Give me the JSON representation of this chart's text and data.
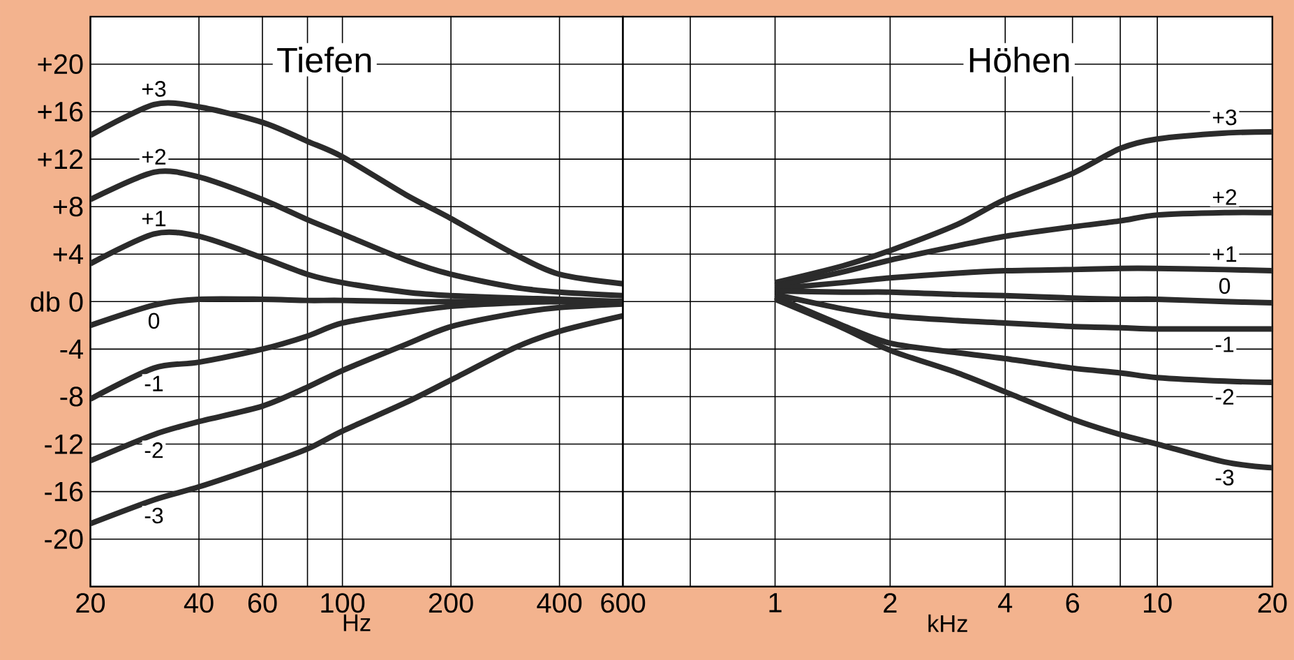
{
  "chart_data": [
    {
      "type": "line",
      "title": "Tiefen",
      "xlabel": "Hz",
      "log": "x",
      "grid": true,
      "x": [
        20,
        30,
        40,
        60,
        80,
        100,
        150,
        200,
        300,
        400,
        600
      ],
      "xlim": [
        20,
        600
      ],
      "xticks": [
        20,
        40,
        60,
        {
          "value": 80,
          "label": null
        },
        100,
        200,
        400,
        600
      ],
      "ylim": [
        -24,
        24
      ],
      "yticks": [
        {
          "value": 20,
          "label": "+20"
        },
        {
          "value": 16,
          "label": "+16"
        },
        {
          "value": 12,
          "label": "+12"
        },
        {
          "value": 8,
          "label": "+8"
        },
        {
          "value": 4,
          "label": "+4"
        },
        {
          "value": 0,
          "label": "db 0"
        },
        -4,
        -8,
        -12,
        -16,
        -20
      ],
      "series": [
        {
          "name": "+3",
          "color": "#2b2b2b",
          "values": [
            14.0,
            16.6,
            16.4,
            15.1,
            13.5,
            12.2,
            9.0,
            7.0,
            4.0,
            2.3,
            1.5
          ]
        },
        {
          "name": "+2",
          "color": "#2b2b2b",
          "values": [
            8.6,
            10.9,
            10.5,
            8.6,
            6.9,
            5.7,
            3.5,
            2.3,
            1.2,
            0.8,
            0.5
          ]
        },
        {
          "name": "+1",
          "color": "#2b2b2b",
          "values": [
            3.2,
            5.7,
            5.5,
            3.7,
            2.3,
            1.6,
            0.8,
            0.5,
            0.3,
            0.2,
            0
          ]
        },
        {
          "name": "0",
          "color": "#2b2b2b",
          "values": [
            -2,
            -0.3,
            0.2,
            0.2,
            0.1,
            0.1,
            0,
            0,
            0,
            0,
            0
          ]
        },
        {
          "name": "-1",
          "color": "#2b2b2b",
          "values": [
            -8.2,
            -5.6,
            -5.1,
            -4,
            -2.9,
            -1.8,
            -0.9,
            -0.4,
            -0.1,
            0,
            0
          ]
        },
        {
          "name": "-2",
          "color": "#2b2b2b",
          "values": [
            -13.4,
            -11.2,
            -10.1,
            -8.8,
            -7.2,
            -5.8,
            -3.6,
            -2.1,
            -1,
            -0.5,
            -0.2
          ]
        },
        {
          "name": "-3",
          "color": "#2b2b2b",
          "values": [
            -18.7,
            -16.7,
            -15.6,
            -13.8,
            -12.4,
            -10.9,
            -8.5,
            -6.6,
            -3.9,
            -2.5,
            -1.2
          ]
        }
      ]
    },
    {
      "type": "line",
      "title": "Höhen",
      "xlabel": "kHz",
      "log": "x",
      "grid": true,
      "tick_labels": "x",
      "x": [
        1,
        1.5,
        2,
        3,
        4,
        6,
        8,
        10,
        15,
        20
      ],
      "xlim": [
        0.4,
        20
      ],
      "xticks": [
        {
          "value": 0.6,
          "label": null
        },
        1,
        2,
        4,
        6,
        {
          "value": 8,
          "label": null
        },
        10,
        20
      ],
      "ylim": [
        -24,
        24
      ],
      "yticks": [
        20,
        16,
        12,
        8,
        4,
        0,
        -4,
        -8,
        -12,
        -16,
        -20
      ],
      "series": [
        {
          "name": "+3",
          "color": "#2b2b2b",
          "values": [
            1.6,
            3,
            4.3,
            6.5,
            8.6,
            10.8,
            12.9,
            13.7,
            14.2,
            14.3
          ]
        },
        {
          "name": "+2",
          "color": "#2b2b2b",
          "values": [
            1.3,
            2.5,
            3.5,
            4.7,
            5.5,
            6.3,
            6.8,
            7.3,
            7.5,
            7.5
          ]
        },
        {
          "name": "+1",
          "color": "#2b2b2b",
          "values": [
            1.1,
            1.6,
            2.0,
            2.4,
            2.6,
            2.7,
            2.8,
            2.8,
            2.7,
            2.6
          ]
        },
        {
          "name": "0",
          "color": "#2b2b2b",
          "values": [
            0.9,
            0.8,
            0.8,
            0.6,
            0.5,
            0.3,
            0.2,
            0.2,
            0,
            -0.1
          ]
        },
        {
          "name": "-1",
          "color": "#2b2b2b",
          "values": [
            0.6,
            -0.6,
            -1.2,
            -1.6,
            -1.8,
            -2.1,
            -2.2,
            -2.3,
            -2.3,
            -2.3
          ]
        },
        {
          "name": "-2",
          "color": "#2b2b2b",
          "values": [
            0.4,
            -2,
            -3.5,
            -4.3,
            -4.8,
            -5.6,
            -6,
            -6.4,
            -6.7,
            -6.8
          ]
        },
        {
          "name": "-3",
          "color": "#2b2b2b",
          "values": [
            0.2,
            -2.2,
            -4.1,
            -6,
            -7.6,
            -9.9,
            -11.2,
            -12,
            -13.5,
            -14
          ]
        }
      ]
    }
  ]
}
